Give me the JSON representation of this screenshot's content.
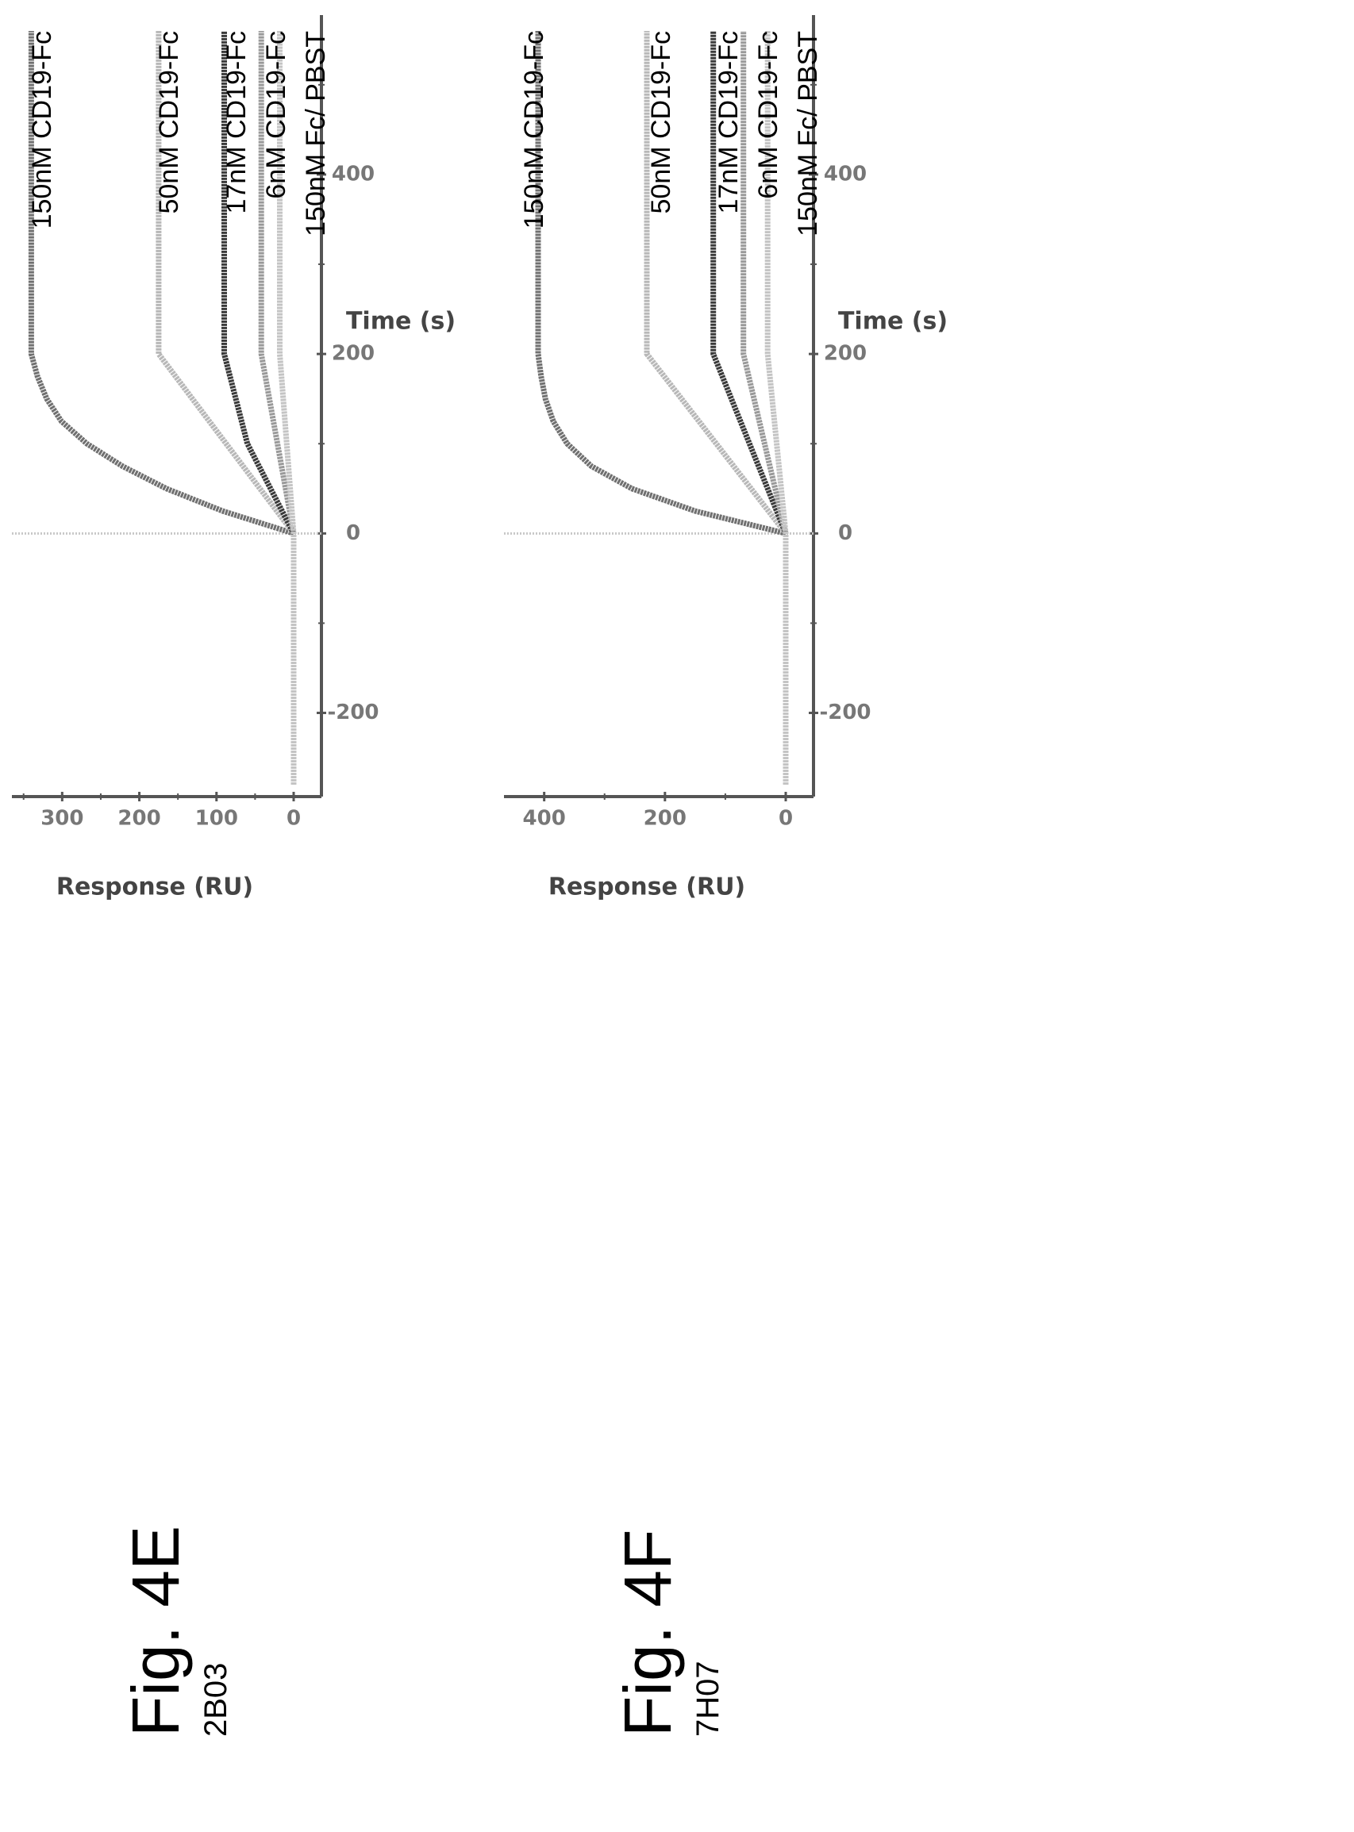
{
  "chart_data": [
    {
      "type": "line",
      "figure": "Fig. 4E",
      "subtitle": "2B03",
      "xlabel": "Time (s)",
      "ylabel": "Response (RU)",
      "xlim": [
        -280,
        560
      ],
      "ylim": [
        -20,
        360
      ],
      "x_ticks": [
        -200,
        0,
        200,
        400
      ],
      "y_ticks": [
        0,
        100,
        200,
        300
      ],
      "legend_position": "right",
      "series": [
        {
          "name": "150nM CD19-Fc",
          "color": "#707070",
          "x": [
            -280,
            0,
            25,
            50,
            75,
            100,
            125,
            150,
            175,
            200,
            560
          ],
          "y": [
            0,
            0,
            92,
            165,
            222,
            268,
            301,
            320,
            332,
            340,
            340
          ]
        },
        {
          "name": "50nM CD19-Fc",
          "color": "#b8b8b8",
          "x": [
            -280,
            0,
            200,
            560
          ],
          "y": [
            0,
            0,
            175,
            175
          ]
        },
        {
          "name": "17nM CD19-Fc",
          "color": "#3a3a3a",
          "x": [
            -280,
            0,
            100,
            200,
            560
          ],
          "y": [
            0,
            0,
            60,
            90,
            90
          ]
        },
        {
          "name": "6nM CD19-Fc",
          "color": "#999999",
          "x": [
            -280,
            0,
            200,
            560
          ],
          "y": [
            0,
            0,
            42,
            42
          ]
        },
        {
          "name": "150nM Fc/ PBST",
          "color": "#c4c4c4",
          "x": [
            -280,
            0,
            200,
            560
          ],
          "y": [
            0,
            0,
            18,
            18
          ]
        }
      ]
    },
    {
      "type": "line",
      "figure": "Fig. 4F",
      "subtitle": "7H07",
      "xlabel": "Time (s)",
      "ylabel": "Response (RU)",
      "xlim": [
        -280,
        560
      ],
      "ylim": [
        -30,
        460
      ],
      "x_ticks": [
        -200,
        0,
        200,
        400
      ],
      "y_ticks": [
        0,
        200,
        400
      ],
      "legend_position": "right",
      "series": [
        {
          "name": "150nM CD19-Fc",
          "color": "#707070",
          "x": [
            -280,
            0,
            25,
            50,
            75,
            100,
            125,
            150,
            175,
            200,
            560
          ],
          "y": [
            0,
            0,
            150,
            255,
            322,
            362,
            385,
            398,
            405,
            410,
            410
          ]
        },
        {
          "name": "50nM CD19-Fc",
          "color": "#b8b8b8",
          "x": [
            -280,
            0,
            200,
            560
          ],
          "y": [
            0,
            0,
            230,
            230
          ]
        },
        {
          "name": "17nM CD19-Fc",
          "color": "#3a3a3a",
          "x": [
            -280,
            0,
            200,
            560
          ],
          "y": [
            0,
            0,
            120,
            120
          ]
        },
        {
          "name": "6nM CD19-Fc",
          "color": "#999999",
          "x": [
            -280,
            0,
            200,
            560
          ],
          "y": [
            0,
            0,
            70,
            70
          ]
        },
        {
          "name": "150nM Fc/ PBST",
          "color": "#c4c4c4",
          "x": [
            -280,
            0,
            200,
            560
          ],
          "y": [
            0,
            0,
            30,
            30
          ]
        }
      ]
    }
  ]
}
